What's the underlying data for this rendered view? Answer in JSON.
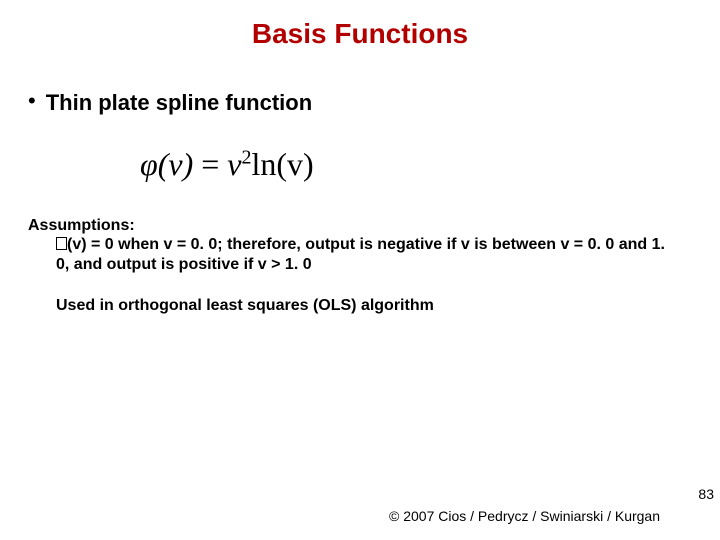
{
  "title": "Basis Functions",
  "bullet": "Thin plate spline function",
  "formula": {
    "lhs_phi": "φ",
    "lhs_rest": "(v)",
    "eq": " = ",
    "rhs_v": "v",
    "rhs_exp": "2",
    "rhs_ln": "ln(v)"
  },
  "assumptions": {
    "label": "Assumptions:",
    "line": "(v) = 0 when v = 0. 0; therefore, output is negative if v is between v = 0. 0 and 1. 0, and output is positive if v > 1. 0",
    "used": "Used in orthogonal least squares (OLS) algorithm"
  },
  "page_number": "83",
  "copyright": "© 2007 Cios / Pedrycz / Swiniarski / Kurgan",
  "colors": {
    "title_color": "#b20000",
    "text_color": "#000000",
    "background": "#ffffff"
  }
}
